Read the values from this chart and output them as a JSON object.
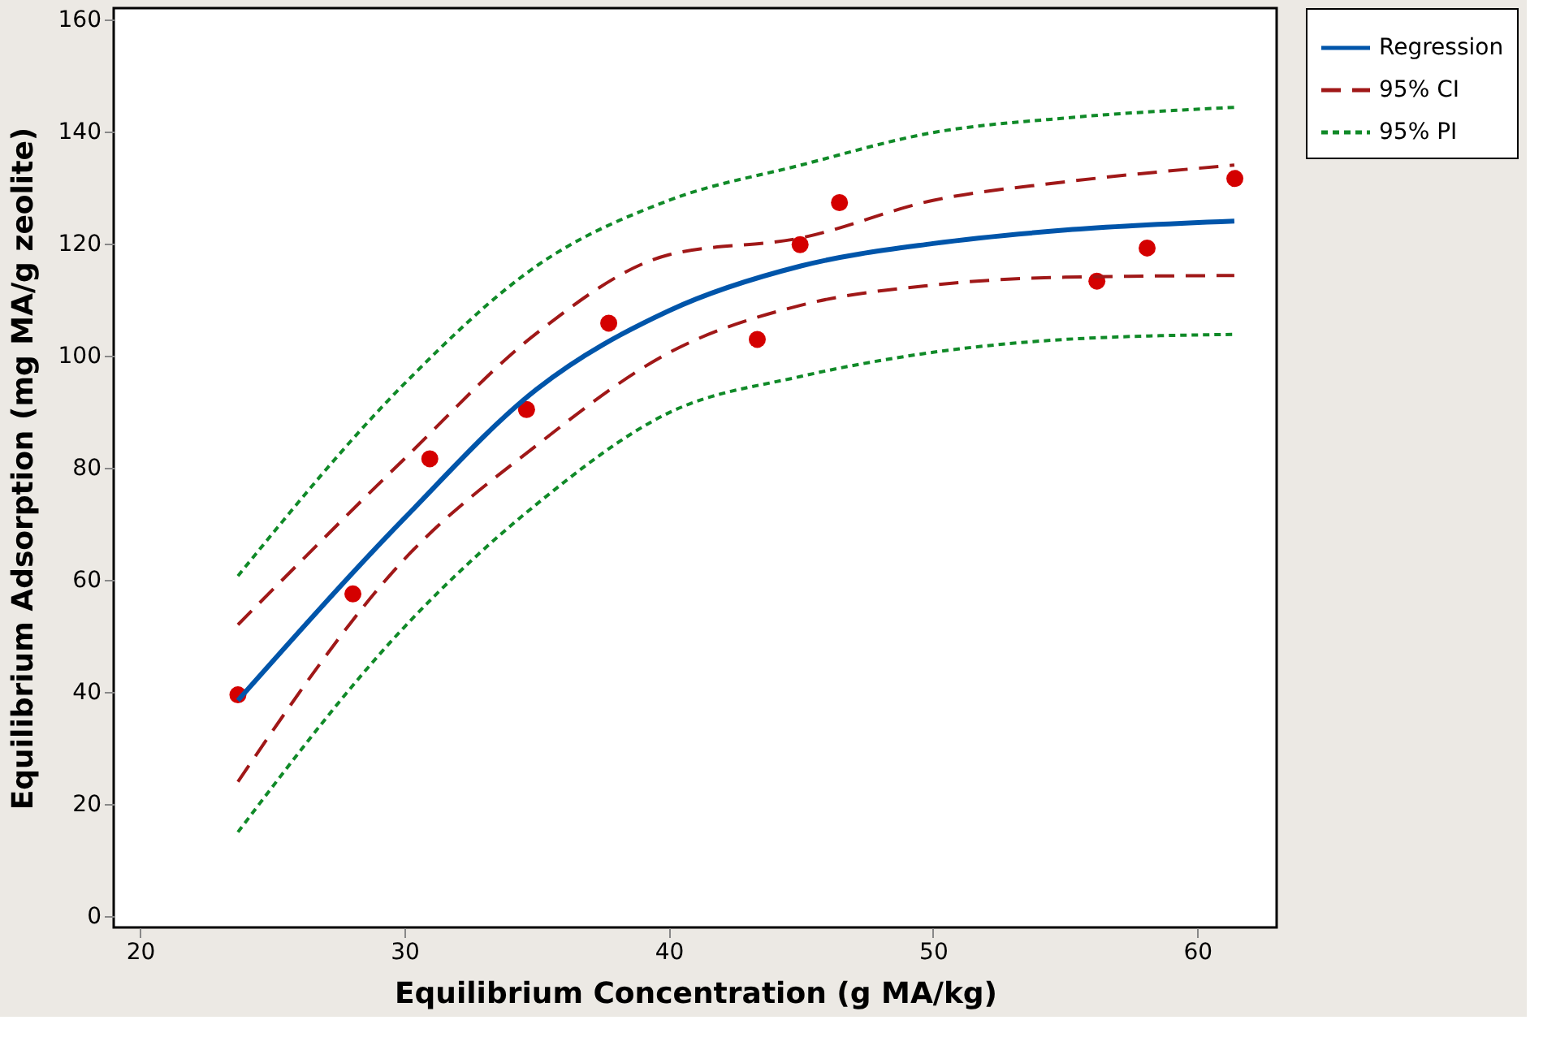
{
  "chart_data": {
    "type": "line",
    "xlabel": "Equilibrium Concentration (g MA/kg)",
    "ylabel": "Equilibrium Adsorption (mg MA/g zeolite)",
    "xlim": [
      19,
      63
    ],
    "ylim": [
      -2,
      162
    ],
    "xticks": [
      20,
      30,
      40,
      50,
      60
    ],
    "yticks": [
      0,
      20,
      40,
      60,
      80,
      100,
      120,
      140,
      160
    ],
    "grid": false,
    "legend": "top right",
    "series": [
      {
        "type": "scatter",
        "color": "#d40000",
        "marker": "circle",
        "x": [
          23.7,
          28.05,
          30.96,
          34.62,
          37.73,
          43.35,
          44.97,
          46.46,
          56.2,
          58.1,
          61.42
        ],
        "values": [
          39.5,
          57.5,
          81.6,
          90.4,
          105.8,
          102.9,
          119.8,
          127.3,
          113.3,
          119.2,
          131.6
        ]
      },
      {
        "type": "line",
        "name": "Regression",
        "color": "#0055aa",
        "line_style": "solid",
        "x": [
          23.7,
          30,
          35,
          40,
          45,
          50,
          55,
          61.4
        ],
        "values": [
          38.5,
          71,
          94,
          108,
          116,
          120,
          122.4,
          124
        ]
      },
      {
        "type": "line",
        "name": "95% CI",
        "color": "#a01818",
        "line_style": "dashed",
        "x": [
          23.7,
          30,
          35,
          40,
          45,
          50,
          55,
          61.4
        ],
        "values": [
          52,
          81.6,
          104,
          118,
          121,
          127.7,
          131,
          134
        ]
      },
      {
        "type": "line",
        "color": "#a01818",
        "line_style": "dashed",
        "x": [
          23.7,
          30,
          35,
          40,
          45,
          50,
          55,
          61.4
        ],
        "values": [
          24,
          63.7,
          84,
          100.5,
          109,
          112.6,
          114,
          114.3
        ]
      },
      {
        "type": "line",
        "name": "95% PI",
        "color": "#108a28",
        "line_style": "dotted",
        "x": [
          23.7,
          30,
          35,
          40,
          45,
          50,
          55,
          61.4
        ],
        "values": [
          60.7,
          95,
          116,
          127.7,
          134,
          139.8,
          142.4,
          144.3
        ]
      },
      {
        "type": "line",
        "color": "#108a28",
        "line_style": "dotted",
        "x": [
          23.7,
          30,
          35,
          40,
          45,
          50,
          55,
          61.4
        ],
        "values": [
          15,
          51.6,
          73.5,
          89.8,
          96.3,
          100.6,
          102.9,
          103.8
        ]
      }
    ]
  }
}
